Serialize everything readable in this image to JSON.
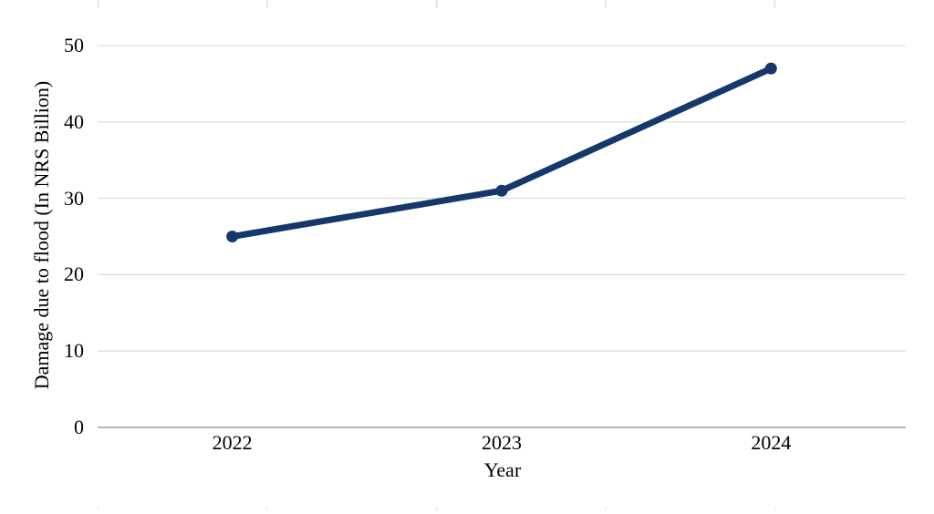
{
  "chart_data": {
    "type": "line",
    "title": "",
    "categories": [
      "2022",
      "2023",
      "2024"
    ],
    "series": [
      {
        "name": "Damage due to flood",
        "values": [
          25,
          31,
          47
        ],
        "color": "#14386B",
        "marker": "circle"
      }
    ],
    "xlabel": "Year",
    "ylabel": "Damage due to flood (In NRS Billion)",
    "ylim": [
      0,
      50
    ],
    "yticks": [
      0,
      10,
      20,
      30,
      40,
      50
    ],
    "grid": "horizontal",
    "legend": "none",
    "colors": {
      "line": "#14386B",
      "gridline": "#D9D9D9",
      "axis_line": "#9B9B9B",
      "edge_tick": "#D9D9D9",
      "text": "#000000",
      "background": "#FFFFFF"
    }
  }
}
